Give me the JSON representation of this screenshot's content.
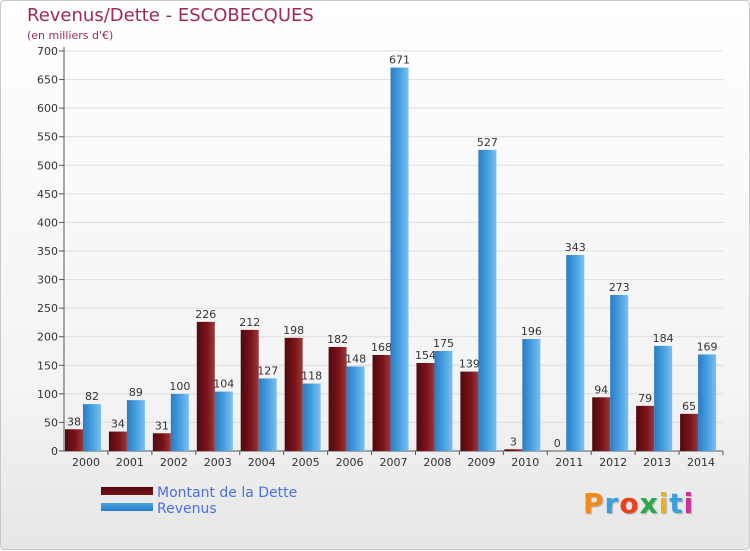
{
  "title": "Revenus/Dette - ESCOBECQUES",
  "subtitle": "(en milliers d'€)",
  "logo_text": "Proxiti",
  "logo_colors": [
    "#f08a1c",
    "#3aa0dc",
    "#e8401c",
    "#2ba84a",
    "#e8b21c",
    "#3aa0dc",
    "#d0309a"
  ],
  "colors": {
    "dette": "#7a1218",
    "revenus": "#4aa2e2",
    "axis_text": "#333333",
    "grid": "#dddddd",
    "title": "#a0285a",
    "legend_text": "#4a6ee8"
  },
  "chart_data": {
    "type": "bar",
    "title": "Revenus/Dette - ESCOBECQUES",
    "subtitle": "(en milliers d'€)",
    "categories": [
      "2000",
      "2001",
      "2002",
      "2003",
      "2004",
      "2005",
      "2006",
      "2007",
      "2008",
      "2009",
      "2010",
      "2011",
      "2012",
      "2013",
      "2014"
    ],
    "series": [
      {
        "name": "Montant de la Dette",
        "values": [
          38,
          34,
          31,
          226,
          212,
          198,
          182,
          168,
          154,
          139,
          3,
          0,
          94,
          79,
          65
        ]
      },
      {
        "name": "Revenus",
        "values": [
          82,
          89,
          100,
          104,
          127,
          118,
          148,
          671,
          175,
          527,
          196,
          343,
          273,
          184,
          169
        ]
      }
    ],
    "ylim": [
      0,
      700
    ],
    "yticks": [
      0,
      50,
      100,
      150,
      200,
      250,
      300,
      350,
      400,
      450,
      500,
      550,
      600,
      650,
      700
    ],
    "grid": true,
    "legend": "bottom-left"
  }
}
